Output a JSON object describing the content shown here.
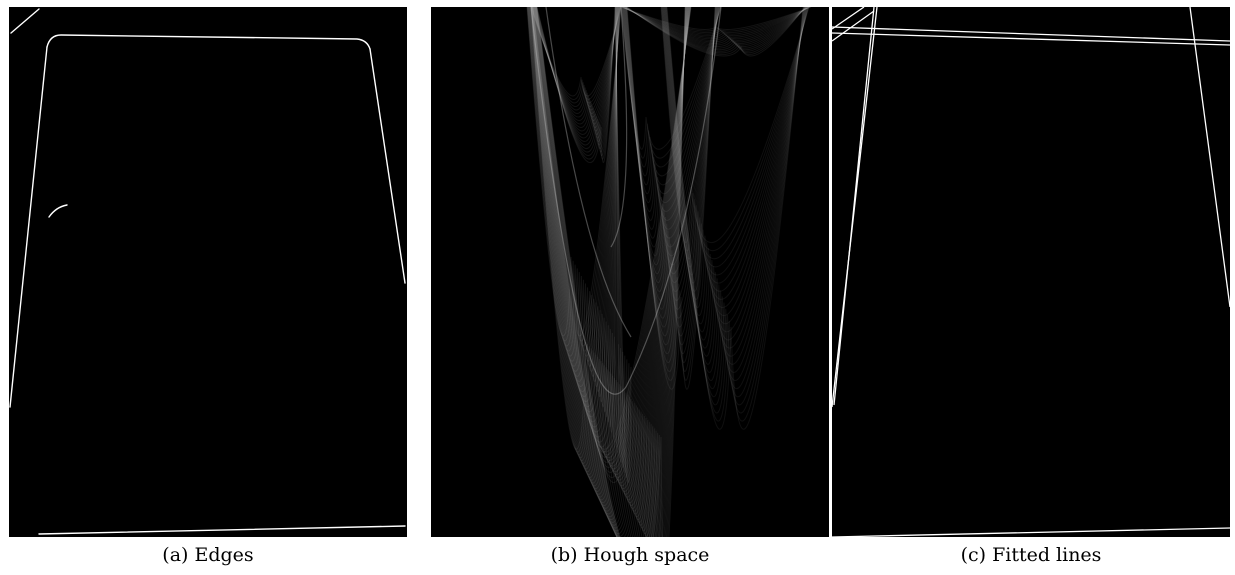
{
  "figure": {
    "subfigures": [
      {
        "id": "a",
        "caption": "(a) Edges"
      },
      {
        "id": "b",
        "caption": "(b) Hough space"
      },
      {
        "id": "c",
        "caption": "(c) Fitted lines"
      }
    ]
  },
  "colors": {
    "background": "#000000",
    "edge_stroke": "#ffffff",
    "hough_curve": "#bdbdbd",
    "page": "#ffffff"
  }
}
